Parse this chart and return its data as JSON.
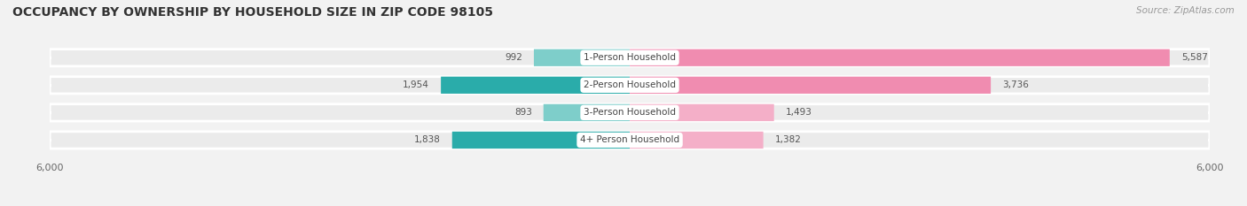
{
  "title": "OCCUPANCY BY OWNERSHIP BY HOUSEHOLD SIZE IN ZIP CODE 98105",
  "source": "Source: ZipAtlas.com",
  "categories": [
    "1-Person Household",
    "2-Person Household",
    "3-Person Household",
    "4+ Person Household"
  ],
  "owner_values": [
    992,
    1954,
    893,
    1838
  ],
  "renter_values": [
    5587,
    3736,
    1493,
    1382
  ],
  "owner_colors": [
    "#7ececa",
    "#2aacaa",
    "#7ececa",
    "#2aacaa"
  ],
  "renter_colors": [
    "#f08cb0",
    "#f08cb0",
    "#f4afc8",
    "#f4afc8"
  ],
  "axis_max": 6000,
  "legend_owner_color": "#2aacaa",
  "legend_renter_color": "#f08cb0",
  "title_fontsize": 10,
  "source_fontsize": 7.5,
  "label_fontsize": 7.5,
  "bar_label_fontsize": 7.5,
  "background_color": "#f2f2f2",
  "bar_bg_color": "#e0e0e0",
  "row_bg_color": "#ebebeb"
}
